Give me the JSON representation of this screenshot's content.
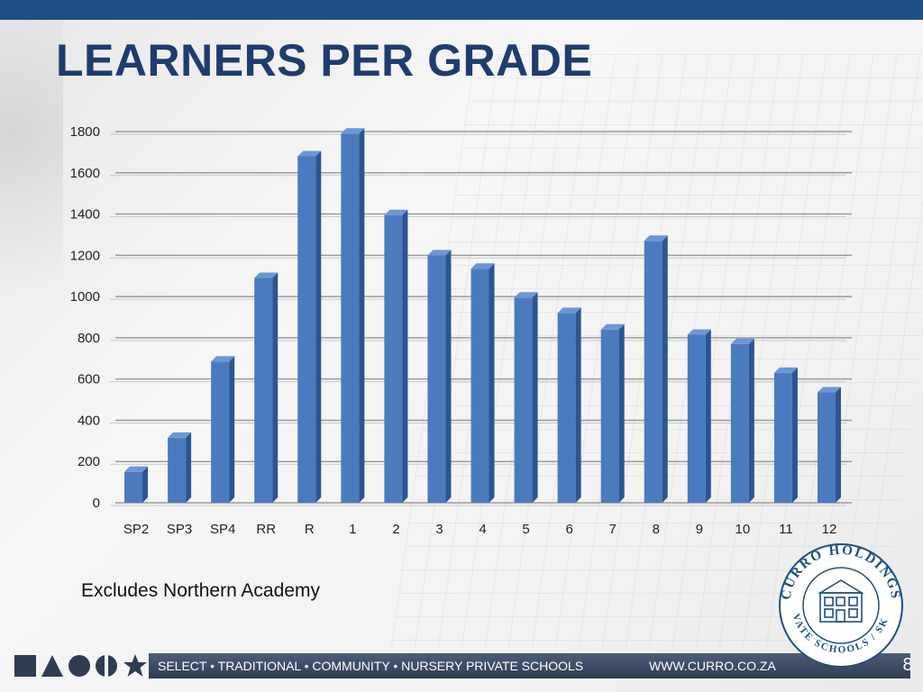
{
  "slide": {
    "title": "LEARNERS PER GRADE",
    "note": "Excludes Northern Academy",
    "footer_text": "SELECT • TRADITIONAL • COMMUNITY • NURSERY PRIVATE SCHOOLS",
    "footer_url": "WWW.CURRO.CO.ZA",
    "page_number": "8"
  },
  "logo": {
    "top_text": "CURRO HOLDINGS",
    "bottom_text": "PRIVATE SCHOOLS / SKOLE"
  },
  "colors": {
    "bar_front": "#4a7bbf",
    "bar_side": "#2c5590",
    "bar_top": "#6a97d4",
    "title": "#1f3c6e",
    "accent": "#1d4f86"
  },
  "chart_data": {
    "type": "bar",
    "categories": [
      "SP2",
      "SP3",
      "SP4",
      "RR",
      "R",
      "1",
      "2",
      "3",
      "4",
      "5",
      "6",
      "7",
      "8",
      "9",
      "10",
      "11",
      "12"
    ],
    "values": [
      150,
      315,
      685,
      1090,
      1680,
      1790,
      1395,
      1200,
      1135,
      995,
      920,
      840,
      1270,
      815,
      770,
      630,
      535
    ],
    "ylim": [
      0,
      1800
    ],
    "yticks": [
      0,
      200,
      400,
      600,
      800,
      1000,
      1200,
      1400,
      1600,
      1800
    ],
    "grid": true,
    "title": "",
    "xlabel": "",
    "ylabel": ""
  }
}
